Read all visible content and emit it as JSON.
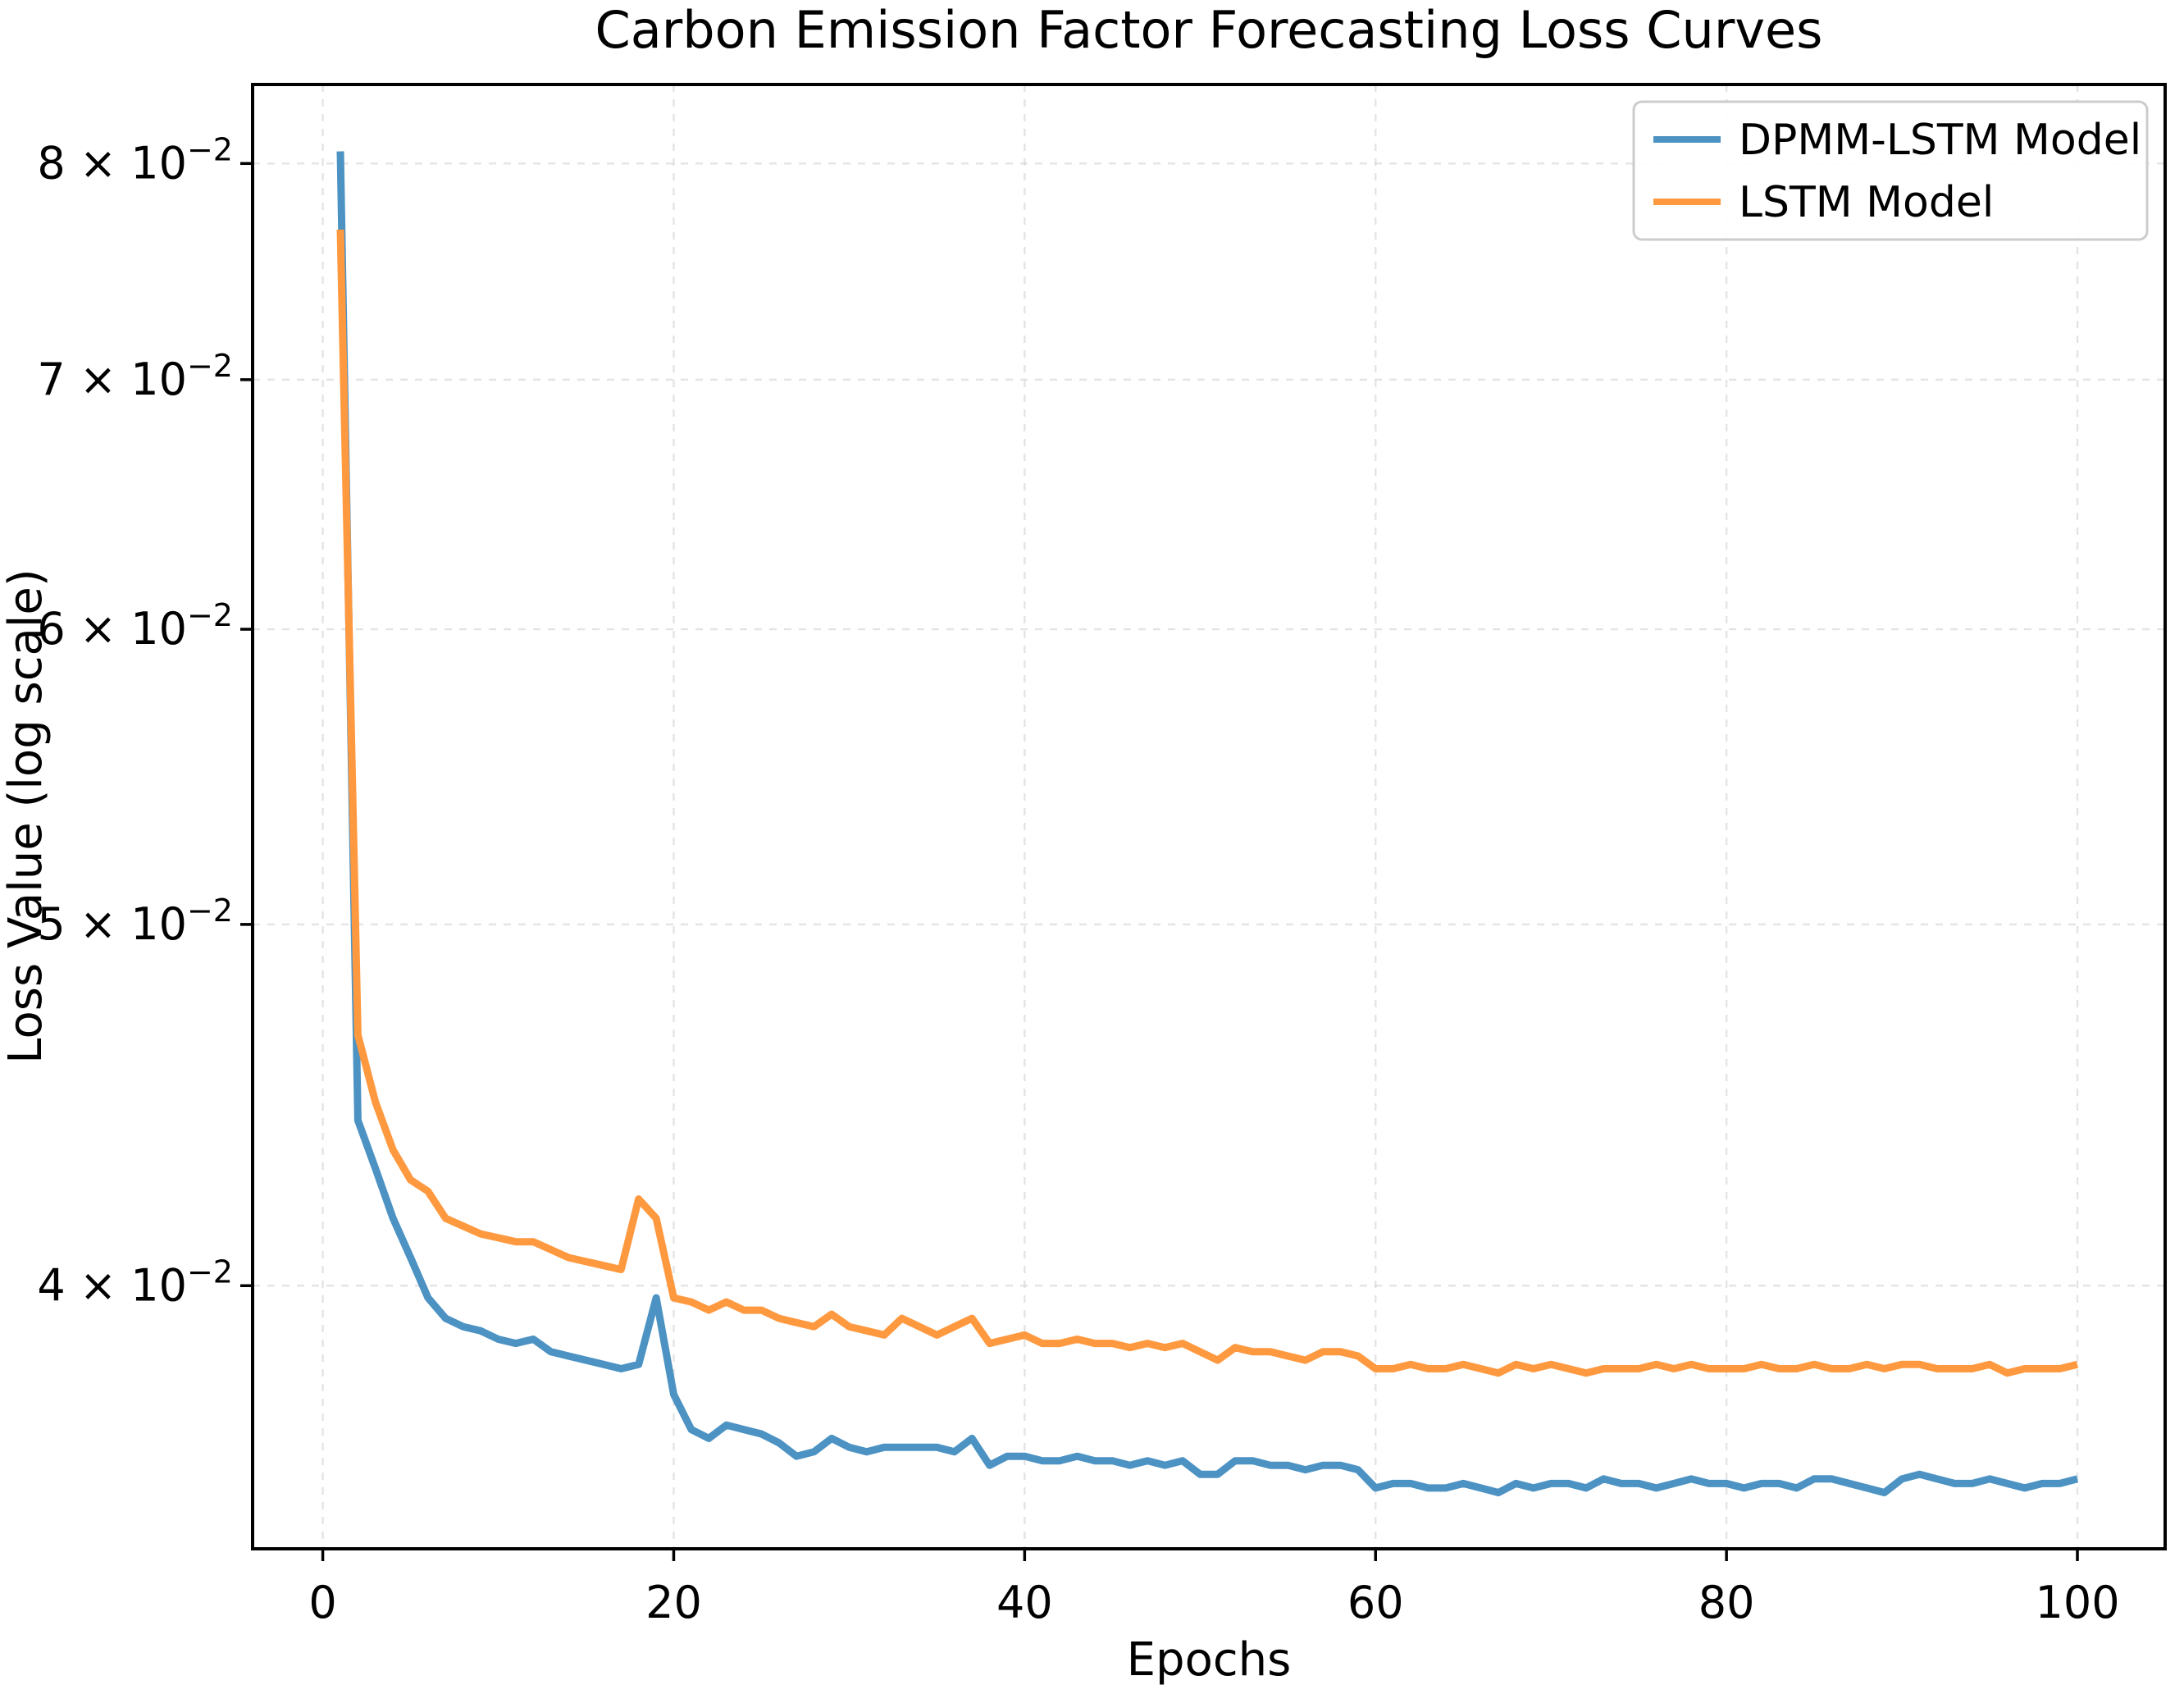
{
  "chart_data": {
    "type": "line",
    "title": "Carbon Emission Factor Forecasting Loss Curves",
    "xlabel": "Epochs",
    "ylabel": "Loss Value (log scale)",
    "yscale": "log",
    "grid": {
      "visible": true,
      "style": "dashed"
    },
    "legend": {
      "position": "upper right",
      "entries": [
        "DPMM-LSTM Model",
        "LSTM Model"
      ]
    },
    "xlim": [
      -4,
      105
    ],
    "ylim": [
      0.034,
      0.084
    ],
    "xticks": [
      0,
      20,
      40,
      60,
      80,
      100
    ],
    "yticks": [
      {
        "value": 0.04,
        "label": "4 × 10⁻²"
      },
      {
        "value": 0.05,
        "label": "5 × 10⁻²"
      },
      {
        "value": 0.06,
        "label": "6 × 10⁻²"
      },
      {
        "value": 0.07,
        "label": "7 × 10⁻²"
      },
      {
        "value": 0.08,
        "label": "8 × 10⁻²"
      }
    ],
    "x_range": {
      "start": 1,
      "end": 100,
      "step": 1
    },
    "series": [
      {
        "name": "DPMM-LSTM Model",
        "color": "#4c92c3",
        "values": [
          0.0806,
          0.0443,
          0.043,
          0.0417,
          0.0407,
          0.0397,
          0.0392,
          0.039,
          0.0389,
          0.0387,
          0.0386,
          0.0387,
          0.0384,
          0.0383,
          0.0382,
          0.0381,
          0.038,
          0.0381,
          0.0397,
          0.0374,
          0.0366,
          0.0364,
          0.0367,
          0.0366,
          0.0365,
          0.0363,
          0.036,
          0.0361,
          0.0364,
          0.0362,
          0.0361,
          0.0362,
          0.0362,
          0.0362,
          0.0362,
          0.0361,
          0.0364,
          0.0358,
          0.036,
          0.036,
          0.0359,
          0.0359,
          0.036,
          0.0359,
          0.0359,
          0.0358,
          0.0359,
          0.0358,
          0.0359,
          0.0356,
          0.0356,
          0.0359,
          0.0359,
          0.0358,
          0.0358,
          0.0357,
          0.0358,
          0.0358,
          0.0357,
          0.0353,
          0.0354,
          0.0354,
          0.0353,
          0.0353,
          0.0354,
          0.0353,
          0.0352,
          0.0354,
          0.0353,
          0.0354,
          0.0354,
          0.0353,
          0.0355,
          0.0354,
          0.0354,
          0.0353,
          0.0354,
          0.0355,
          0.0354,
          0.0354,
          0.0353,
          0.0354,
          0.0354,
          0.0353,
          0.0355,
          0.0355,
          0.0354,
          0.0353,
          0.0352,
          0.0355,
          0.0356,
          0.0355,
          0.0354,
          0.0354,
          0.0355,
          0.0354,
          0.0353,
          0.0354,
          0.0354,
          0.0355
        ]
      },
      {
        "name": "LSTM Model",
        "color": "#ff993f",
        "values": [
          0.0768,
          0.0467,
          0.0448,
          0.0435,
          0.0427,
          0.0424,
          0.0417,
          0.0415,
          0.0413,
          0.0412,
          0.0411,
          0.0411,
          0.0409,
          0.0407,
          0.0406,
          0.0405,
          0.0404,
          0.0422,
          0.0417,
          0.0397,
          0.0396,
          0.0394,
          0.0396,
          0.0394,
          0.0394,
          0.0392,
          0.0391,
          0.039,
          0.0393,
          0.039,
          0.0389,
          0.0388,
          0.0392,
          0.039,
          0.0388,
          0.039,
          0.0392,
          0.0386,
          0.0387,
          0.0388,
          0.0386,
          0.0386,
          0.0387,
          0.0386,
          0.0386,
          0.0385,
          0.0386,
          0.0385,
          0.0386,
          0.0384,
          0.0382,
          0.0385,
          0.0384,
          0.0384,
          0.0383,
          0.0382,
          0.0384,
          0.0384,
          0.0383,
          0.038,
          0.038,
          0.0381,
          0.038,
          0.038,
          0.0381,
          0.038,
          0.0379,
          0.0381,
          0.038,
          0.0381,
          0.038,
          0.0379,
          0.038,
          0.038,
          0.038,
          0.0381,
          0.038,
          0.0381,
          0.038,
          0.038,
          0.038,
          0.0381,
          0.038,
          0.038,
          0.0381,
          0.038,
          0.038,
          0.0381,
          0.038,
          0.0381,
          0.0381,
          0.038,
          0.038,
          0.038,
          0.0381,
          0.0379,
          0.038,
          0.038,
          0.038,
          0.0381
        ]
      }
    ],
    "colors": {
      "spine": "#000000",
      "grid": "#cfcfcf",
      "legend_border": "#cccccc",
      "text": "#000000",
      "background": "#ffffff"
    }
  }
}
